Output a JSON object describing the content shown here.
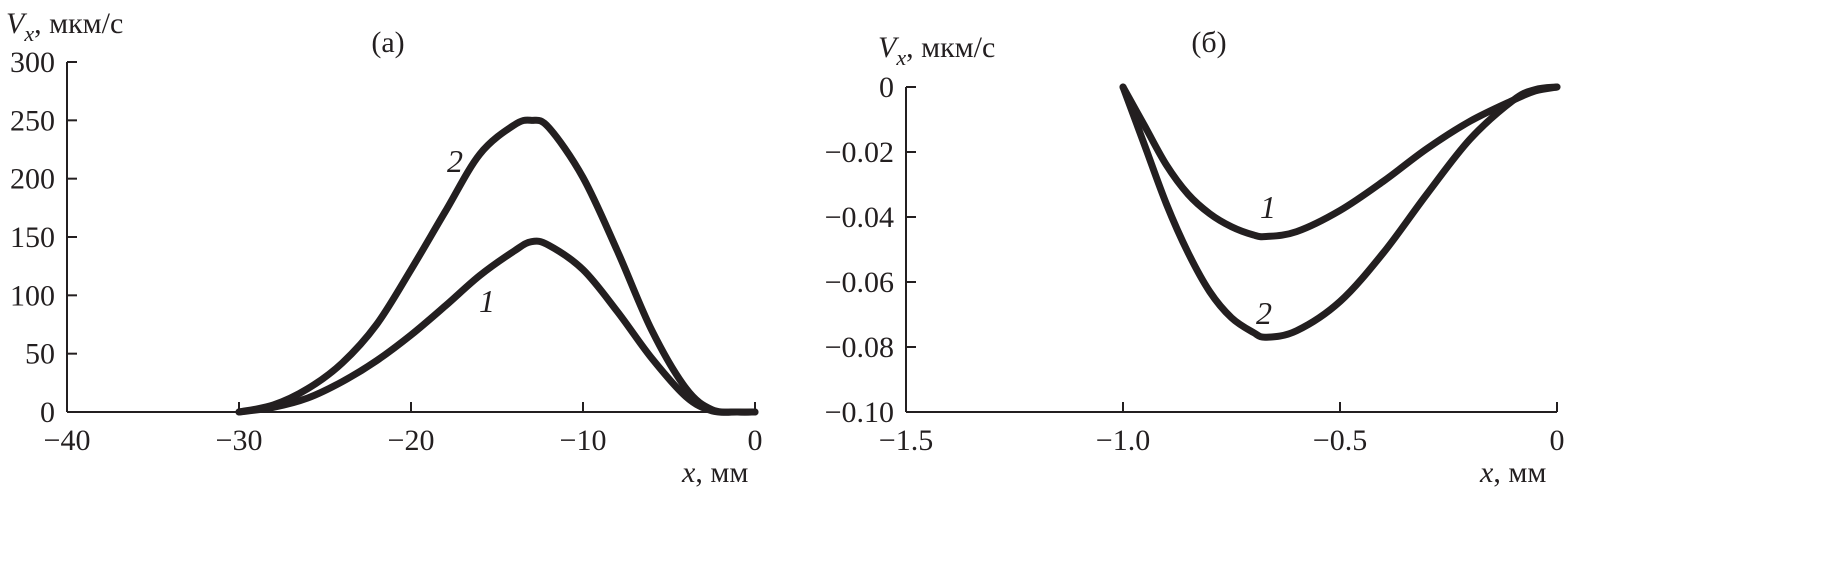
{
  "chart_data": [
    {
      "type": "line",
      "panel_label": "(a)",
      "ylabel_var": "V",
      "ylabel_sub": "x",
      "ylabel_unit": ", мкм/с",
      "xlabel_var": "x",
      "xlabel_unit": ", мм",
      "xlim": [
        -40,
        0
      ],
      "ylim": [
        0,
        300
      ],
      "xticks": [
        -40,
        -30,
        -20,
        -10,
        0
      ],
      "yticks": [
        0,
        50,
        100,
        150,
        200,
        250,
        300
      ],
      "xtick_labels": [
        "−40",
        "−30",
        "−20",
        "−10",
        "0"
      ],
      "ytick_labels": [
        "0",
        "50",
        "100",
        "150",
        "200",
        "250",
        "300"
      ],
      "series": [
        {
          "label": "1",
          "x": [
            -30,
            -28,
            -26,
            -24,
            -22,
            -20,
            -18,
            -16,
            -14,
            -13,
            -12,
            -10,
            -8,
            -6,
            -4,
            -2.5,
            -1,
            0
          ],
          "y": [
            0,
            4,
            12,
            26,
            44,
            66,
            91,
            117,
            138,
            146,
            143,
            122,
            86,
            46,
            13,
            1,
            0,
            0
          ]
        },
        {
          "label": "2",
          "x": [
            -30,
            -28,
            -26,
            -24,
            -22,
            -20,
            -18,
            -16,
            -14,
            -13,
            -12,
            -10,
            -8,
            -6,
            -4,
            -2.5,
            -1,
            0
          ],
          "y": [
            0,
            6,
            20,
            42,
            75,
            122,
            172,
            221,
            246,
            250,
            244,
            201,
            138,
            70,
            20,
            2,
            0,
            0
          ]
        }
      ]
    },
    {
      "type": "line",
      "panel_label": "(б)",
      "ylabel_var": "V",
      "ylabel_sub": "x",
      "ylabel_unit": ", мкм/с",
      "xlabel_var": "x",
      "xlabel_unit": ", мм",
      "xlim": [
        -1.5,
        0
      ],
      "ylim": [
        -0.1,
        0
      ],
      "xticks": [
        -1.5,
        -1.0,
        -0.5,
        0
      ],
      "yticks": [
        0,
        -0.02,
        -0.04,
        -0.06,
        -0.08,
        -0.1
      ],
      "xtick_labels": [
        "−1.5",
        "−1.0",
        "−0.5",
        "0"
      ],
      "ytick_labels": [
        "0",
        "−0.02",
        "−0.04",
        "−0.06",
        "−0.08",
        "−0.10"
      ],
      "series": [
        {
          "label": "1",
          "x": [
            -1.0,
            -0.95,
            -0.9,
            -0.85,
            -0.8,
            -0.75,
            -0.7,
            -0.67,
            -0.6,
            -0.5,
            -0.4,
            -0.3,
            -0.2,
            -0.1,
            -0.05,
            0
          ],
          "y": [
            0,
            -0.012,
            -0.024,
            -0.033,
            -0.039,
            -0.043,
            -0.0455,
            -0.046,
            -0.0445,
            -0.038,
            -0.029,
            -0.019,
            -0.0105,
            -0.004,
            -0.0012,
            0
          ]
        },
        {
          "label": "2",
          "x": [
            -1.0,
            -0.95,
            -0.9,
            -0.85,
            -0.8,
            -0.75,
            -0.7,
            -0.67,
            -0.6,
            -0.5,
            -0.4,
            -0.3,
            -0.2,
            -0.1,
            -0.05,
            0
          ],
          "y": [
            0,
            -0.018,
            -0.036,
            -0.051,
            -0.063,
            -0.071,
            -0.0755,
            -0.077,
            -0.075,
            -0.066,
            -0.051,
            -0.033,
            -0.016,
            -0.004,
            -0.0008,
            0
          ]
        }
      ]
    }
  ]
}
